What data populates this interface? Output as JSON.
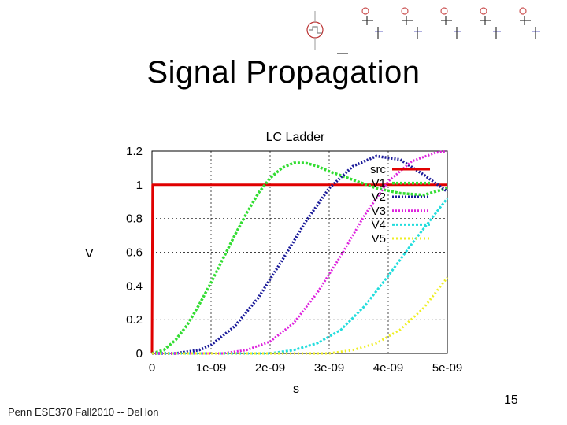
{
  "slide": {
    "title": "Signal Propagation",
    "footer": "Penn ESE370 Fall2010 -- DeHon",
    "page_number": "15"
  },
  "chart_data": {
    "type": "line",
    "title": "LC Ladder",
    "xlabel": "s",
    "ylabel": "V",
    "xlim": [
      0,
      5e-09
    ],
    "ylim": [
      0,
      1.2
    ],
    "x_ticks": [
      0,
      1e-09,
      2e-09,
      3e-09,
      4e-09,
      5e-09
    ],
    "x_tick_labels": [
      "0",
      "1e-09",
      "2e-09",
      "3e-09",
      "4e-09",
      "5e-09"
    ],
    "y_ticks": [
      0,
      0.2,
      0.4,
      0.6,
      0.8,
      1.0,
      1.2
    ],
    "y_tick_labels": [
      "0",
      "0.2",
      "0.4",
      "0.6",
      "0.8",
      "1",
      "1.2"
    ],
    "grid": "dashed",
    "legend_position": "top-right",
    "series": [
      {
        "name": "src",
        "color": "#e00000",
        "points": [
          [
            0,
            0
          ],
          [
            1e-11,
            1
          ],
          [
            5e-09,
            1
          ]
        ]
      },
      {
        "name": "V1",
        "color": "#33dd33",
        "points": [
          [
            0,
            0
          ],
          [
            2e-10,
            0.02
          ],
          [
            4e-10,
            0.08
          ],
          [
            6e-10,
            0.17
          ],
          [
            8e-10,
            0.29
          ],
          [
            1e-09,
            0.42
          ],
          [
            1.2e-09,
            0.56
          ],
          [
            1.4e-09,
            0.7
          ],
          [
            1.6e-09,
            0.83
          ],
          [
            1.8e-09,
            0.95
          ],
          [
            2e-09,
            1.04
          ],
          [
            2.2e-09,
            1.1
          ],
          [
            2.4e-09,
            1.13
          ],
          [
            2.6e-09,
            1.13
          ],
          [
            2.8e-09,
            1.11
          ],
          [
            3e-09,
            1.08
          ],
          [
            3.4e-09,
            1.03
          ],
          [
            3.8e-09,
            0.98
          ],
          [
            4.2e-09,
            0.95
          ],
          [
            4.6e-09,
            0.94
          ],
          [
            5e-09,
            0.98
          ]
        ]
      },
      {
        "name": "V2",
        "color": "#1a1a99",
        "points": [
          [
            0,
            0
          ],
          [
            4e-10,
            0
          ],
          [
            8e-10,
            0.02
          ],
          [
            1e-09,
            0.05
          ],
          [
            1.4e-09,
            0.16
          ],
          [
            1.8e-09,
            0.33
          ],
          [
            2.2e-09,
            0.55
          ],
          [
            2.6e-09,
            0.78
          ],
          [
            3e-09,
            0.98
          ],
          [
            3.4e-09,
            1.11
          ],
          [
            3.8e-09,
            1.17
          ],
          [
            4.2e-09,
            1.15
          ],
          [
            4.6e-09,
            1.06
          ],
          [
            5e-09,
            0.96
          ]
        ]
      },
      {
        "name": "V3",
        "color": "#dd22dd",
        "points": [
          [
            0,
            0
          ],
          [
            1.2e-09,
            0
          ],
          [
            1.6e-09,
            0.02
          ],
          [
            2e-09,
            0.07
          ],
          [
            2.4e-09,
            0.18
          ],
          [
            2.8e-09,
            0.36
          ],
          [
            3.2e-09,
            0.58
          ],
          [
            3.6e-09,
            0.82
          ],
          [
            4e-09,
            1.02
          ],
          [
            4.4e-09,
            1.14
          ],
          [
            4.8e-09,
            1.19
          ],
          [
            5e-09,
            1.2
          ]
        ]
      },
      {
        "name": "V4",
        "color": "#22dddd",
        "points": [
          [
            0,
            0
          ],
          [
            2e-09,
            0
          ],
          [
            2.4e-09,
            0.02
          ],
          [
            2.8e-09,
            0.06
          ],
          [
            3.2e-09,
            0.14
          ],
          [
            3.6e-09,
            0.28
          ],
          [
            4e-09,
            0.46
          ],
          [
            4.4e-09,
            0.65
          ],
          [
            4.8e-09,
            0.83
          ],
          [
            5e-09,
            0.92
          ]
        ]
      },
      {
        "name": "V5",
        "color": "#eeee22",
        "points": [
          [
            0,
            0
          ],
          [
            3e-09,
            0
          ],
          [
            3.4e-09,
            0.02
          ],
          [
            3.8e-09,
            0.06
          ],
          [
            4.2e-09,
            0.14
          ],
          [
            4.6e-09,
            0.27
          ],
          [
            5e-09,
            0.45
          ]
        ]
      }
    ]
  }
}
